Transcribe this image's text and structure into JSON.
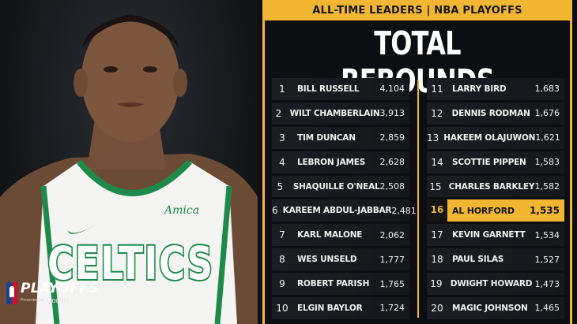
{
  "header": {
    "banner": "ALL-TIME LEADERS | NBA PLAYOFFS",
    "title": "TOTAL REBOUNDS"
  },
  "logo": {
    "title": "PLAYOFFS",
    "presented_by": "Presented by",
    "sponsor": "Google"
  },
  "jersey": {
    "team": "CELTICS",
    "patch": "Amica"
  },
  "colors": {
    "accent": "#f2b632",
    "jersey_green": "#1e8a4a",
    "background": "#0e0f12"
  },
  "leaders_left": [
    {
      "rank": "1",
      "name": "BILL RUSSELL",
      "value": "4,104"
    },
    {
      "rank": "2",
      "name": "WILT CHAMBERLAIN",
      "value": "3,913"
    },
    {
      "rank": "3",
      "name": "TIM DUNCAN",
      "value": "2,859"
    },
    {
      "rank": "4",
      "name": "LEBRON JAMES",
      "value": "2,628"
    },
    {
      "rank": "5",
      "name": "SHAQUILLE O'NEAL",
      "value": "2,508"
    },
    {
      "rank": "6",
      "name": "KAREEM ABDUL-JABBAR",
      "value": "2,481"
    },
    {
      "rank": "7",
      "name": "KARL MALONE",
      "value": "2,062"
    },
    {
      "rank": "8",
      "name": "WES UNSELD",
      "value": "1,777"
    },
    {
      "rank": "9",
      "name": "ROBERT PARISH",
      "value": "1,765"
    },
    {
      "rank": "10",
      "name": "ELGIN BAYLOR",
      "value": "1,724"
    }
  ],
  "leaders_right": [
    {
      "rank": "11",
      "name": "LARRY BIRD",
      "value": "1,683"
    },
    {
      "rank": "12",
      "name": "DENNIS RODMAN",
      "value": "1,676"
    },
    {
      "rank": "13",
      "name": "HAKEEM OLAJUWON",
      "value": "1,621"
    },
    {
      "rank": "14",
      "name": "SCOTTIE PIPPEN",
      "value": "1,583"
    },
    {
      "rank": "15",
      "name": "CHARLES BARKLEY",
      "value": "1,582"
    },
    {
      "rank": "16",
      "name": "AL HORFORD",
      "value": "1,535",
      "highlight": true
    },
    {
      "rank": "17",
      "name": "KEVIN GARNETT",
      "value": "1,534"
    },
    {
      "rank": "18",
      "name": "PAUL SILAS",
      "value": "1,527"
    },
    {
      "rank": "19",
      "name": "DWIGHT HOWARD",
      "value": "1,473"
    },
    {
      "rank": "20",
      "name": "MAGIC JOHNSON",
      "value": "1,465"
    }
  ]
}
